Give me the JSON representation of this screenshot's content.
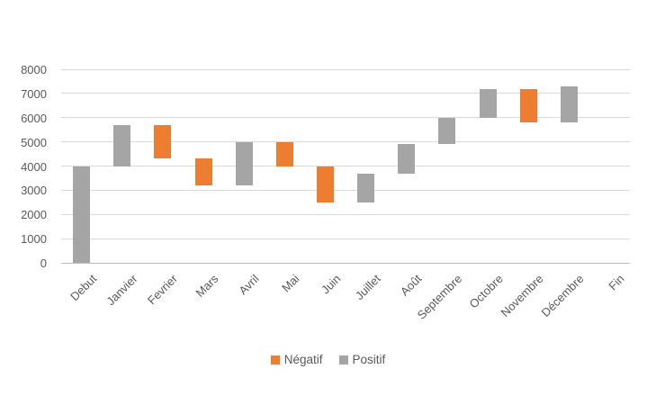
{
  "chart_data": {
    "type": "bar",
    "subtype": "waterfall",
    "title": "",
    "xlabel": "",
    "ylabel": "",
    "categories": [
      "Debut",
      "Janvier",
      "Fevrier",
      "Mars",
      "Avril",
      "Mai",
      "Juin",
      "Juillet",
      "Août",
      "Septembre",
      "Octobre",
      "Novembre",
      "Décembre",
      "Fin"
    ],
    "bars": [
      {
        "category": "Debut",
        "from": 0,
        "to": 4000,
        "series": "Positif"
      },
      {
        "category": "Janvier",
        "from": 4000,
        "to": 5700,
        "series": "Positif"
      },
      {
        "category": "Fevrier",
        "from": 5700,
        "to": 4300,
        "series": "Négatif"
      },
      {
        "category": "Mars",
        "from": 4300,
        "to": 3200,
        "series": "Négatif"
      },
      {
        "category": "Avril",
        "from": 3200,
        "to": 5000,
        "series": "Positif"
      },
      {
        "category": "Mai",
        "from": 5000,
        "to": 4000,
        "series": "Négatif"
      },
      {
        "category": "Juin",
        "from": 4000,
        "to": 2500,
        "series": "Négatif"
      },
      {
        "category": "Juillet",
        "from": 2500,
        "to": 3700,
        "series": "Positif"
      },
      {
        "category": "Août",
        "from": 3700,
        "to": 4900,
        "series": "Positif"
      },
      {
        "category": "Septembre",
        "from": 4900,
        "to": 6000,
        "series": "Positif"
      },
      {
        "category": "Octobre",
        "from": 6000,
        "to": 7200,
        "series": "Positif"
      },
      {
        "category": "Novembre",
        "from": 7200,
        "to": 5800,
        "series": "Négatif"
      },
      {
        "category": "Décembre",
        "from": 5800,
        "to": 7300,
        "series": "Positif"
      },
      {
        "category": "Fin",
        "from": null,
        "to": null,
        "series": null
      }
    ],
    "ylim": [
      0,
      8000
    ],
    "ytick_step": 1000,
    "ytick_labels": [
      "0",
      "1000",
      "2000",
      "3000",
      "4000",
      "5000",
      "6000",
      "7000",
      "8000"
    ],
    "grid": true,
    "legend": {
      "position": "bottom",
      "items": [
        {
          "label": "Négatif",
          "color": "#ED7D31"
        },
        {
          "label": "Positif",
          "color": "#A5A5A5"
        }
      ]
    },
    "colors": {
      "negatif": "#ED7D31",
      "positif": "#A5A5A5",
      "gridline": "#D9D9D9",
      "axis_line": "#BFBFBF",
      "label_text": "#595959"
    }
  }
}
